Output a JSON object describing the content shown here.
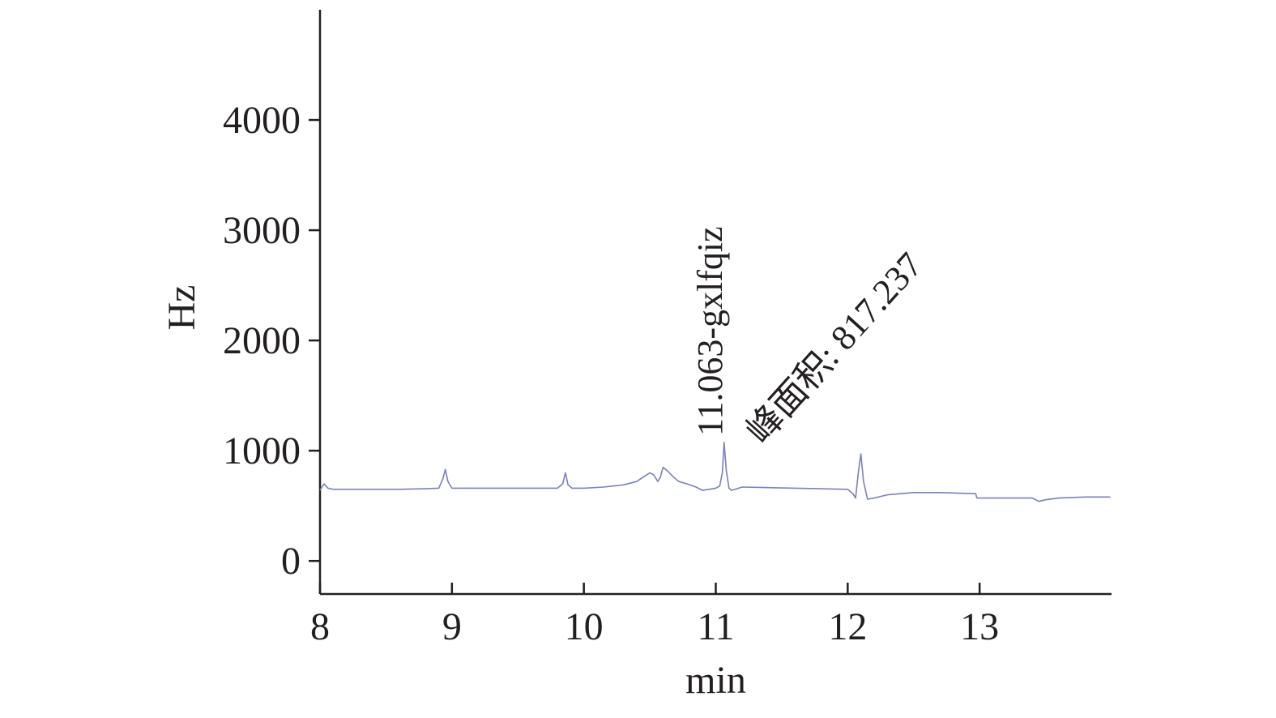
{
  "chart_data": {
    "type": "line",
    "title": "",
    "xlabel": "min",
    "ylabel": "Hz",
    "xlim": [
      8,
      14
    ],
    "ylim": [
      -300,
      5000
    ],
    "x_ticks": [
      8,
      9,
      10,
      11,
      12,
      13
    ],
    "y_ticks": [
      0,
      1000,
      2000,
      3000,
      4000
    ],
    "x_tick_labels": [
      "8",
      "9",
      "10",
      "11",
      "12",
      "13"
    ],
    "y_tick_labels": [
      "0",
      "1000",
      "2000",
      "3000",
      "4000"
    ],
    "grid": false,
    "series_color": "#7b7fc4",
    "annotations": {
      "peak_label": "11.063-gxlfqiz",
      "area_label": "峰面积: 817.237"
    },
    "series": [
      {
        "x": [
          8.0,
          8.03,
          8.06,
          8.1,
          8.2,
          8.4,
          8.6,
          8.8,
          8.9,
          8.93,
          8.95,
          8.97,
          9.0,
          9.2,
          9.4,
          9.6,
          9.8,
          9.84,
          9.86,
          9.88,
          9.91,
          10.0,
          10.15,
          10.3,
          10.4,
          10.45,
          10.5,
          10.53,
          10.56,
          10.58,
          10.6,
          10.64,
          10.68,
          10.72,
          10.78,
          10.85,
          10.9,
          10.95,
          11.0,
          11.03,
          11.05,
          11.063,
          11.08,
          11.1,
          11.12,
          11.2,
          11.4,
          11.6,
          11.8,
          12.0,
          12.04,
          12.06,
          12.08,
          12.1,
          12.12,
          12.15,
          12.2,
          12.3,
          12.5,
          12.7,
          12.97,
          12.98,
          13.2,
          13.4,
          13.45,
          13.5,
          13.6,
          13.8,
          13.99
        ],
        "y": [
          640,
          700,
          660,
          650,
          650,
          650,
          650,
          655,
          660,
          740,
          830,
          720,
          660,
          660,
          660,
          660,
          660,
          700,
          800,
          690,
          660,
          660,
          670,
          690,
          720,
          760,
          800,
          780,
          720,
          760,
          850,
          810,
          760,
          720,
          700,
          670,
          640,
          650,
          660,
          680,
          800,
          1075,
          820,
          660,
          640,
          670,
          665,
          660,
          655,
          650,
          610,
          570,
          800,
          970,
          720,
          560,
          570,
          600,
          620,
          620,
          610,
          570,
          570,
          570,
          540,
          555,
          570,
          580,
          580
        ]
      }
    ]
  }
}
